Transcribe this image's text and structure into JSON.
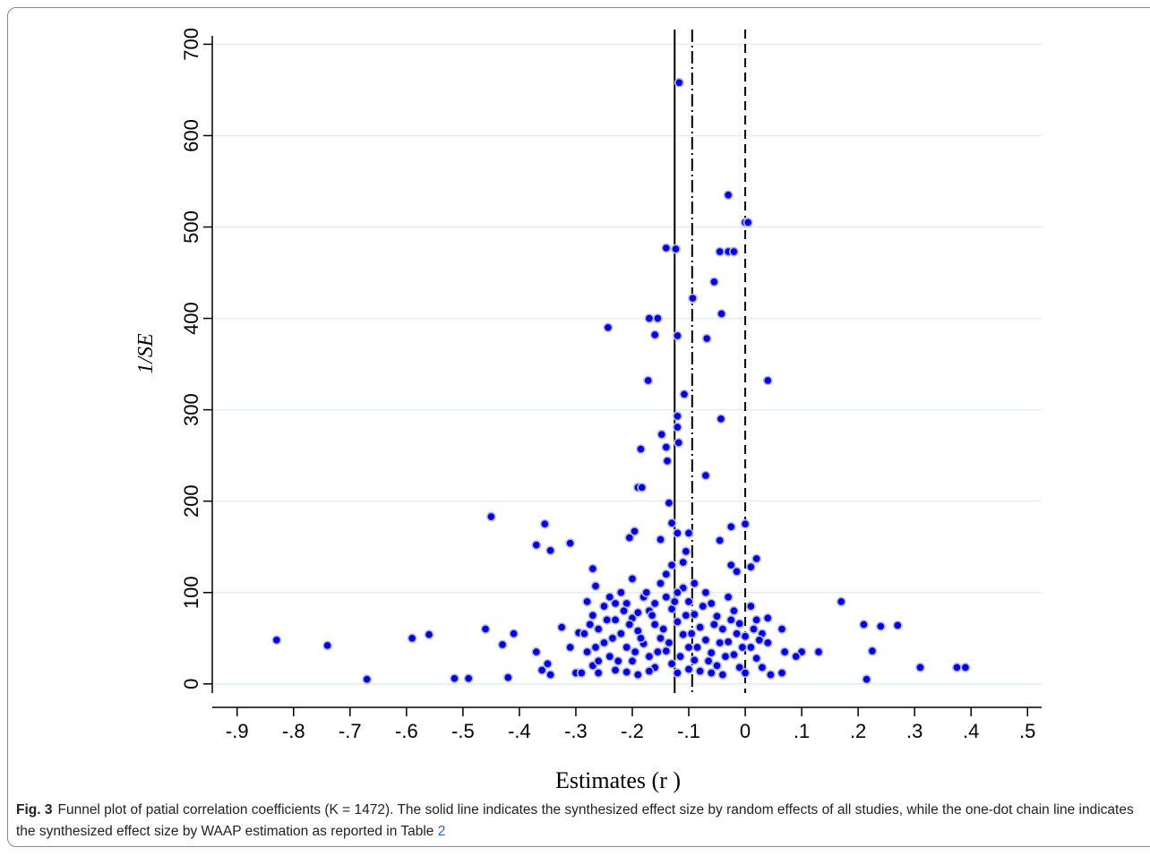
{
  "chart_data": {
    "type": "scatter",
    "y_axis_label": "1/SE",
    "x_axis_label": "Estimates (r )",
    "xlim": [
      -0.944,
      0.525
    ],
    "ylim": [
      -10,
      720
    ],
    "xticks": [
      {
        "value": -0.9,
        "label": "-.9"
      },
      {
        "value": -0.8,
        "label": "-.8"
      },
      {
        "value": -0.7,
        "label": "-.7"
      },
      {
        "value": -0.6,
        "label": "-.6"
      },
      {
        "value": -0.5,
        "label": "-.5"
      },
      {
        "value": -0.4,
        "label": "-.4"
      },
      {
        "value": -0.3,
        "label": "-.3"
      },
      {
        "value": -0.2,
        "label": "-.2"
      },
      {
        "value": -0.1,
        "label": "-.1"
      },
      0,
      {
        "value": 0.1,
        "label": ".1"
      },
      {
        "value": 0.2,
        "label": ".2"
      },
      {
        "value": 0.3,
        "label": ".3"
      },
      {
        "value": 0.4,
        "label": ".4"
      },
      {
        "value": 0.5,
        "label": ".5"
      }
    ],
    "yticks": [
      0,
      100,
      200,
      300,
      400,
      500,
      600,
      700
    ],
    "grid": true,
    "reference_lines": [
      {
        "value": -0.125,
        "style": "solid"
      },
      {
        "value": -0.094,
        "style": "dashdot"
      },
      {
        "value": 0,
        "style": "dashed"
      }
    ],
    "series": [
      {
        "color": "#0000e0",
        "x": [
          -0.117,
          -0.03,
          0,
          0.005,
          -0.14,
          -0.123,
          -0.045,
          -0.03,
          -0.02,
          -0.055,
          -0.093,
          -0.042,
          -0.17,
          -0.155,
          -0.243,
          -0.16,
          -0.12,
          -0.068,
          0.04,
          -0.172,
          -0.108,
          -0.12,
          -0.043,
          -0.12,
          -0.148,
          -0.118,
          -0.185,
          -0.14,
          -0.138,
          -0.07,
          -0.19,
          -0.183,
          -0.135,
          -0.45,
          -0.355,
          -0.13,
          0,
          -0.025,
          -0.196,
          -0.12,
          -0.1,
          -0.205,
          -0.15,
          -0.045,
          -0.37,
          -0.31,
          -0.345,
          -0.105,
          -0.11,
          0.02,
          -0.025,
          0.01,
          -0.015,
          0.17,
          0.21,
          0.24,
          0.27,
          0.225,
          0.215,
          0.31,
          0.375,
          0.39,
          -0.83,
          -0.74,
          -0.67,
          -0.59,
          -0.56,
          -0.515,
          -0.49,
          -0.46,
          -0.43,
          -0.41,
          -0.42,
          -0.37,
          -0.36,
          -0.35,
          -0.345,
          -0.325,
          -0.31,
          -0.295,
          -0.3,
          -0.27,
          -0.265,
          0.1,
          0.13,
          0.07,
          0.065,
          0.045,
          0.065,
          0.04,
          0.09,
          -0.28,
          -0.27,
          -0.26,
          -0.25,
          -0.24,
          -0.23,
          -0.28,
          -0.27,
          -0.26,
          -0.25,
          -0.24,
          -0.23,
          -0.22,
          -0.21,
          -0.2,
          -0.19,
          -0.22,
          -0.21,
          -0.2,
          -0.19,
          -0.18,
          -0.17,
          -0.16,
          -0.2,
          -0.18,
          -0.17,
          -0.16,
          -0.15,
          -0.14,
          -0.13,
          -0.12,
          -0.15,
          -0.14,
          -0.13,
          -0.12,
          -0.11,
          -0.1,
          -0.09,
          -0.08,
          -0.13,
          -0.11,
          -0.1,
          -0.09,
          -0.08,
          -0.07,
          -0.06,
          -0.05,
          -0.04,
          -0.07,
          -0.06,
          -0.05,
          -0.04,
          -0.03,
          -0.02,
          -0.01,
          0,
          -0.03,
          -0.02,
          -0.01,
          0,
          0.01,
          0.02,
          0.03,
          0.01,
          0.02,
          0.03,
          0.04,
          -0.29,
          -0.285,
          -0.275,
          -0.265,
          -0.245,
          -0.235,
          -0.225,
          -0.215,
          -0.205,
          -0.195,
          -0.185,
          -0.175,
          -0.165,
          -0.155,
          -0.145,
          -0.135,
          -0.125,
          -0.115,
          -0.105,
          -0.095,
          -0.085,
          -0.075,
          -0.065,
          -0.055,
          -0.045,
          -0.035,
          -0.025,
          -0.015,
          -0.005,
          0.015,
          0.025,
          -0.14,
          -0.09,
          -0.12,
          -0.16,
          -0.19,
          -0.23,
          -0.26,
          -0.17,
          -0.1,
          -0.06,
          -0.21
        ],
        "values": [
          658,
          535,
          505,
          505,
          477,
          476,
          473,
          473,
          473,
          440,
          422,
          405,
          400,
          400,
          390,
          382,
          381,
          378,
          332,
          332,
          317,
          293,
          290,
          281,
          273,
          264,
          257,
          259,
          244,
          228,
          215,
          215,
          198,
          183,
          175,
          176,
          175,
          172,
          167,
          165,
          165,
          160,
          158,
          157,
          152,
          154,
          146,
          145,
          133,
          137,
          130,
          128,
          123,
          90,
          65,
          63,
          64,
          36,
          5,
          18,
          18,
          18,
          48,
          42,
          5,
          50,
          54,
          6,
          6,
          60,
          43,
          55,
          7,
          35,
          15,
          22,
          10,
          62,
          40,
          56,
          12,
          126,
          107,
          35,
          35,
          35,
          12,
          10,
          60,
          72,
          30,
          90,
          75,
          60,
          45,
          30,
          15,
          35,
          20,
          12,
          85,
          95,
          70,
          55,
          40,
          25,
          10,
          100,
          88,
          72,
          58,
          44,
          30,
          18,
          115,
          95,
          80,
          65,
          50,
          36,
          22,
          12,
          110,
          95,
          82,
          68,
          54,
          40,
          26,
          14,
          130,
          105,
          90,
          76,
          62,
          48,
          34,
          20,
          10,
          100,
          88,
          74,
          60,
          46,
          32,
          18,
          12,
          95,
          80,
          66,
          52,
          40,
          28,
          18,
          85,
          70,
          55,
          45,
          12,
          55,
          65,
          40,
          70,
          50,
          25,
          80,
          65,
          35,
          50,
          100,
          75,
          35,
          60,
          45,
          90,
          30,
          75,
          55,
          40,
          85,
          25,
          65,
          45,
          30,
          70,
          55,
          40,
          60,
          48,
          120,
          110,
          100,
          88,
          78,
          88,
          25,
          14,
          16,
          12,
          13
        ]
      }
    ]
  },
  "caption": {
    "label": "Fig. 3",
    "text": "Funnel plot of patial correlation coefficients (K = 1472). The solid line indicates the synthesized effect size by random effects of all studies, while the one-dot chain line indicates the synthesized effect size by WAAP estimation as reported in Table",
    "link": "2"
  }
}
